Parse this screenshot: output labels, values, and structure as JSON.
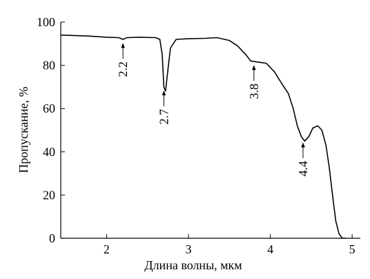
{
  "chart_data": {
    "type": "line",
    "xlabel": "Длина волны, мкм",
    "ylabel": "Пропускание, %",
    "x": [
      1.44,
      1.6,
      1.8,
      2.0,
      2.15,
      2.2,
      2.25,
      2.4,
      2.6,
      2.65,
      2.68,
      2.7,
      2.72,
      2.74,
      2.78,
      2.85,
      3.0,
      3.2,
      3.35,
      3.5,
      3.6,
      3.7,
      3.76,
      3.85,
      3.95,
      4.05,
      4.15,
      4.22,
      4.28,
      4.33,
      4.38,
      4.42,
      4.47,
      4.52,
      4.58,
      4.63,
      4.68,
      4.72,
      4.76,
      4.8,
      4.84,
      4.88,
      4.92
    ],
    "values": [
      94,
      93.8,
      93.5,
      93,
      92.8,
      92,
      92.8,
      93,
      92.8,
      92,
      85,
      70,
      68,
      75,
      88,
      92,
      92.3,
      92.5,
      92.8,
      91.5,
      89,
      85,
      82,
      81.5,
      81,
      77,
      71,
      67,
      60,
      52,
      47,
      45,
      47,
      51,
      52,
      50,
      43,
      33,
      20,
      8,
      2,
      0,
      0
    ],
    "color": "#000000",
    "annotations": [
      2.2,
      2.7,
      3.8,
      4.4
    ],
    "xlim": [
      1.44,
      5.1
    ],
    "xticks": [
      2,
      3,
      4,
      5
    ],
    "ylim": [
      0,
      100
    ],
    "yticks": [
      0,
      20,
      40,
      60,
      80,
      100
    ]
  }
}
